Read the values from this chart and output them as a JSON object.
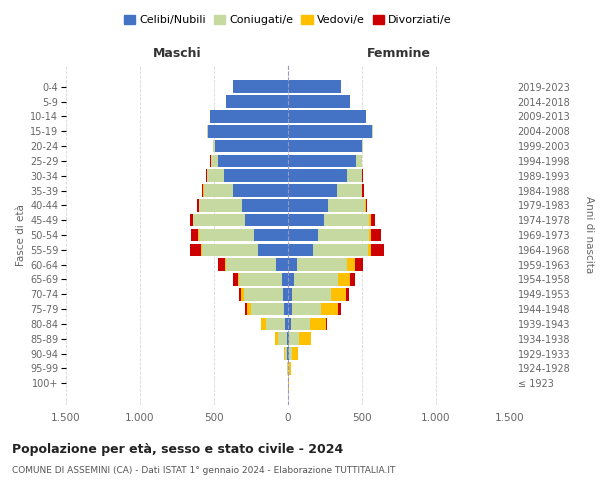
{
  "age_groups": [
    "100+",
    "95-99",
    "90-94",
    "85-89",
    "80-84",
    "75-79",
    "70-74",
    "65-69",
    "60-64",
    "55-59",
    "50-54",
    "45-49",
    "40-44",
    "35-39",
    "30-34",
    "25-29",
    "20-24",
    "15-19",
    "10-14",
    "5-9",
    "0-4"
  ],
  "birth_years": [
    "≤ 1923",
    "1924-1928",
    "1929-1933",
    "1934-1938",
    "1939-1943",
    "1944-1948",
    "1949-1953",
    "1954-1958",
    "1959-1963",
    "1964-1968",
    "1969-1973",
    "1974-1978",
    "1979-1983",
    "1984-1988",
    "1989-1993",
    "1994-1998",
    "1999-2003",
    "2004-2008",
    "2009-2013",
    "2014-2018",
    "2019-2023"
  ],
  "males": {
    "celibi": [
      2,
      2,
      5,
      10,
      20,
      30,
      35,
      40,
      80,
      200,
      230,
      290,
      310,
      370,
      430,
      470,
      490,
      540,
      530,
      420,
      370
    ],
    "coniugati": [
      0,
      3,
      15,
      55,
      130,
      220,
      260,
      290,
      340,
      380,
      370,
      350,
      290,
      200,
      120,
      50,
      15,
      5,
      0,
      0,
      0
    ],
    "vedovi": [
      0,
      2,
      8,
      20,
      30,
      30,
      20,
      10,
      5,
      5,
      5,
      5,
      2,
      2,
      0,
      0,
      0,
      0,
      0,
      0,
      0
    ],
    "divorziati": [
      0,
      0,
      0,
      0,
      5,
      10,
      15,
      30,
      50,
      80,
      50,
      20,
      15,
      10,
      5,
      5,
      0,
      0,
      0,
      0,
      0
    ]
  },
  "females": {
    "nubili": [
      2,
      2,
      5,
      10,
      20,
      25,
      30,
      40,
      60,
      170,
      200,
      240,
      270,
      330,
      400,
      460,
      500,
      570,
      530,
      420,
      360
    ],
    "coniugate": [
      0,
      5,
      20,
      65,
      130,
      195,
      260,
      300,
      340,
      370,
      350,
      310,
      250,
      170,
      100,
      40,
      10,
      5,
      0,
      0,
      0
    ],
    "vedove": [
      2,
      10,
      40,
      80,
      110,
      120,
      100,
      80,
      50,
      20,
      10,
      10,
      5,
      2,
      0,
      0,
      0,
      0,
      0,
      0,
      0
    ],
    "divorziate": [
      0,
      0,
      0,
      0,
      5,
      15,
      20,
      30,
      60,
      90,
      70,
      30,
      10,
      10,
      5,
      0,
      0,
      0,
      0,
      0,
      0
    ]
  },
  "colors": {
    "celibi": "#4472c4",
    "coniugati": "#c5d9a0",
    "vedovi": "#ffc000",
    "divorziati": "#cc0000"
  },
  "xlim": 1500,
  "xticks": [
    -1500,
    -1000,
    -500,
    0,
    500,
    1000,
    1500
  ],
  "xticklabels": [
    "1.500",
    "1.000",
    "500",
    "0",
    "500",
    "1.000",
    "1.500"
  ],
  "title": "Popolazione per età, sesso e stato civile - 2024",
  "subtitle": "COMUNE DI ASSEMINI (CA) - Dati ISTAT 1° gennaio 2024 - Elaborazione TUTTITALIA.IT",
  "ylabel_left": "Fasce di età",
  "ylabel_right": "Anni di nascita",
  "label_maschi": "Maschi",
  "label_femmine": "Femmine",
  "legend_labels": [
    "Celibi/Nubili",
    "Coniugati/e",
    "Vedovi/e",
    "Divorziati/e"
  ],
  "bg_color": "#ffffff",
  "grid_color": "#cccccc"
}
